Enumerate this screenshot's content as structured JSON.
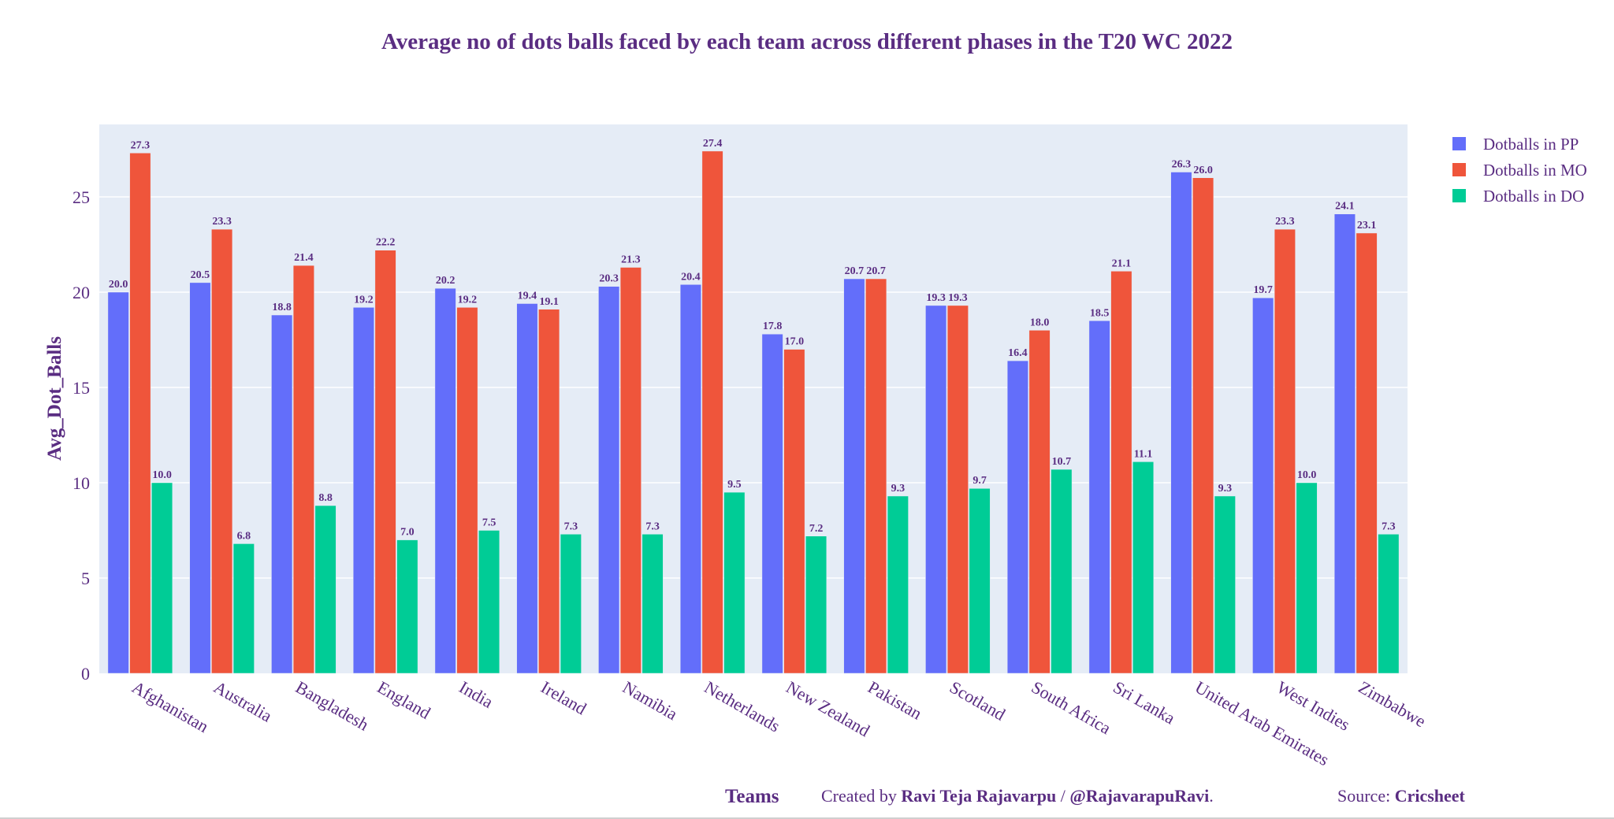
{
  "chart_data": {
    "type": "bar",
    "title": "Average no of dots balls faced by each team across different phases in the T20 WC 2022",
    "xlabel": "Teams",
    "ylabel": "Avg_Dot_Balls",
    "ylim": [
      0,
      28.8
    ],
    "yticks": [
      0,
      5,
      10,
      15,
      20,
      25
    ],
    "grid": true,
    "legend_position": "top-right",
    "categories": [
      "Afghanistan",
      "Australia",
      "Bangladesh",
      "England",
      "India",
      "Ireland",
      "Namibia",
      "Netherlands",
      "New Zealand",
      "Pakistan",
      "Scotland",
      "South Africa",
      "Sri Lanka",
      "United Arab Emirates",
      "West Indies",
      "Zimbabwe"
    ],
    "series": [
      {
        "name": "Dotballs in PP",
        "color": "#636efa",
        "values": [
          20.0,
          20.5,
          18.8,
          19.2,
          20.2,
          19.4,
          20.3,
          20.4,
          17.8,
          20.7,
          19.3,
          16.4,
          18.5,
          26.3,
          19.7,
          24.1
        ]
      },
      {
        "name": "Dotballs in MO",
        "color": "#ef553b",
        "values": [
          27.3,
          23.3,
          21.4,
          22.2,
          19.2,
          19.1,
          21.3,
          27.4,
          17.0,
          20.7,
          19.3,
          18.0,
          21.1,
          26.0,
          23.3,
          23.1
        ]
      },
      {
        "name": "Dotballs in DO",
        "color": "#00cc96",
        "values": [
          10.0,
          6.8,
          8.8,
          7.0,
          7.5,
          7.3,
          7.3,
          9.5,
          7.2,
          9.3,
          9.7,
          10.7,
          11.1,
          9.3,
          10.0,
          7.3
        ]
      }
    ]
  },
  "footer": {
    "xlabel": "Teams",
    "created_prefix": "Created by ",
    "author": "Ravi Teja Rajavarpu",
    "separator": " / ",
    "handle": "@RajavarapuRavi",
    "suffix": ".",
    "source_prefix": "Source: ",
    "source": "Cricsheet"
  },
  "colors": {
    "title": "#5a2d82",
    "plot_bg": "#e5ecf6",
    "grid": "#ffffff"
  }
}
